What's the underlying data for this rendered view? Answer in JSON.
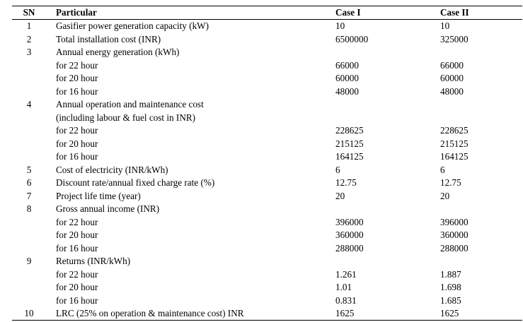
{
  "table": {
    "headers": {
      "sn": "SN",
      "particular": "Particular",
      "case1": "Case I",
      "case2": "Case II"
    },
    "rows": [
      {
        "sn": "1",
        "particular": "Gasifier power generation capacity (kW)",
        "case1": "10",
        "case2": "10"
      },
      {
        "sn": "2",
        "particular": "Total installation cost (INR)",
        "case1": "6500000",
        "case2": "325000"
      },
      {
        "sn": "3",
        "particular": "Annual energy generation (kWh)",
        "case1": "",
        "case2": ""
      },
      {
        "sn": "",
        "particular": "for 22 hour",
        "case1": "66000",
        "case2": "66000"
      },
      {
        "sn": "",
        "particular": "for 20 hour",
        "case1": "60000",
        "case2": "60000"
      },
      {
        "sn": "",
        "particular": "for 16 hour",
        "case1": "48000",
        "case2": "48000"
      },
      {
        "sn": "4",
        "particular": "Annual operation  and maintenance cost",
        "case1": "",
        "case2": ""
      },
      {
        "sn": "",
        "particular": "(including labour & fuel cost in INR)",
        "case1": "",
        "case2": ""
      },
      {
        "sn": "",
        "particular": "for 22 hour",
        "case1": "228625",
        "case2": "228625"
      },
      {
        "sn": "",
        "particular": "for 20 hour",
        "case1": "215125",
        "case2": "215125"
      },
      {
        "sn": "",
        "particular": "for 16 hour",
        "case1": "164125",
        "case2": "164125"
      },
      {
        "sn": "5",
        "particular": "Cost of electricity (INR/kWh)",
        "case1": "6",
        "case2": "6"
      },
      {
        "sn": "6",
        "particular": "Discount rate/annual fixed charge rate (%)",
        "case1": "12.75",
        "case2": "12.75"
      },
      {
        "sn": "7",
        "particular": "Project life time (year)",
        "case1": "20",
        "case2": "20"
      },
      {
        "sn": "8",
        "particular": "Gross annual income (INR)",
        "case1": "",
        "case2": ""
      },
      {
        "sn": "",
        "particular": "for 22 hour",
        "case1": "396000",
        "case2": "396000"
      },
      {
        "sn": "",
        "particular": "for 20 hour",
        "case1": "360000",
        "case2": "360000"
      },
      {
        "sn": "",
        "particular": "for 16 hour",
        "case1": "288000",
        "case2": "288000"
      },
      {
        "sn": "9",
        "particular": "Returns (INR/kWh)",
        "case1": "",
        "case2": ""
      },
      {
        "sn": "",
        "particular": "for 22 hour",
        "case1": "1.261",
        "case2": "1.887"
      },
      {
        "sn": "",
        "particular": "for 20 hour",
        "case1": "1.01",
        "case2": "1.698"
      },
      {
        "sn": "",
        "particular": "for 16 hour",
        "case1": "0.831",
        "case2": "1.685"
      },
      {
        "sn": "10",
        "particular": "LRC (25%  on operation & maintenance cost) INR",
        "case1": "1625",
        "case2": "1625"
      }
    ]
  }
}
